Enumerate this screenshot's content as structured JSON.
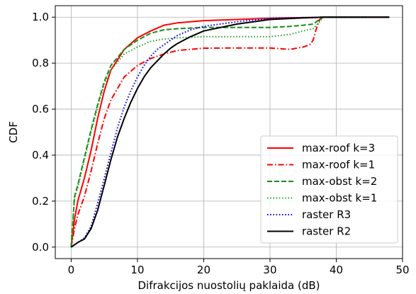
{
  "chart_data": {
    "type": "line",
    "xlabel": "Difrakcijos nuostolių paklaida (dB)",
    "ylabel": "CDF",
    "xlim": [
      -2.4,
      50
    ],
    "ylim": [
      -0.05,
      1.05
    ],
    "xticks": [
      0,
      10,
      20,
      30,
      40,
      50
    ],
    "yticks": [
      0.0,
      0.2,
      0.4,
      0.6,
      0.8,
      1.0
    ],
    "xtick_labels": [
      "0",
      "10",
      "20",
      "30",
      "40",
      "50"
    ],
    "ytick_labels": [
      "0.0",
      "0.2",
      "0.4",
      "0.6",
      "0.8",
      "1.0"
    ],
    "grid": true,
    "legend_position": "lower-right",
    "series": [
      {
        "name": "max-roof k=3",
        "color": "#ff0000",
        "style": "solid",
        "x": [
          0,
          0.5,
          1,
          2,
          3,
          4,
          5,
          6,
          8,
          10,
          12,
          14,
          16,
          20,
          25,
          30,
          35,
          37,
          38,
          40,
          48
        ],
        "y": [
          0,
          0.12,
          0.2,
          0.3,
          0.42,
          0.56,
          0.68,
          0.77,
          0.86,
          0.91,
          0.94,
          0.965,
          0.975,
          0.985,
          0.99,
          0.995,
          0.998,
          0.999,
          1.0,
          1.0,
          1.0
        ]
      },
      {
        "name": "max-roof k=1",
        "color": "#ff0000",
        "style": "dashdot",
        "x": [
          0,
          0.5,
          1,
          2,
          3,
          4,
          5,
          6,
          8,
          10,
          12,
          14,
          16,
          20,
          25,
          30,
          33,
          35,
          36,
          36.5,
          37,
          37.5,
          38,
          40,
          48
        ],
        "y": [
          0,
          0.08,
          0.14,
          0.22,
          0.33,
          0.45,
          0.56,
          0.64,
          0.74,
          0.79,
          0.82,
          0.84,
          0.855,
          0.865,
          0.866,
          0.866,
          0.86,
          0.87,
          0.88,
          0.9,
          0.95,
          0.99,
          1.0,
          1.0,
          1.0
        ]
      },
      {
        "name": "max-obst k=2",
        "color": "#1a8a1a",
        "style": "dashed",
        "x": [
          0,
          0.5,
          1,
          2,
          3,
          4,
          5,
          6,
          8,
          10,
          12,
          14,
          16,
          20,
          25,
          30,
          33,
          35,
          36.5,
          37.5,
          38,
          40,
          48
        ],
        "y": [
          0,
          0.22,
          0.27,
          0.39,
          0.51,
          0.62,
          0.72,
          0.79,
          0.86,
          0.9,
          0.93,
          0.945,
          0.95,
          0.955,
          0.955,
          0.955,
          0.96,
          0.965,
          0.97,
          0.99,
          1.0,
          1.0,
          1.0
        ]
      },
      {
        "name": "max-obst k=1",
        "color": "#2ca02c",
        "style": "dotted",
        "x": [
          0,
          0.5,
          1,
          2,
          3,
          4,
          5,
          6,
          8,
          10,
          12,
          14,
          16,
          20,
          25,
          30,
          33,
          35,
          36.5,
          37.5,
          38,
          40,
          48
        ],
        "y": [
          0,
          0.21,
          0.26,
          0.38,
          0.5,
          0.61,
          0.71,
          0.77,
          0.84,
          0.87,
          0.895,
          0.905,
          0.91,
          0.915,
          0.915,
          0.915,
          0.925,
          0.94,
          0.95,
          0.98,
          1.0,
          1.0,
          1.0
        ]
      },
      {
        "name": "raster R3",
        "color": "#0000ff",
        "style": "dotted",
        "x": [
          0,
          1,
          2,
          3,
          4,
          5,
          6,
          7,
          8,
          9,
          10,
          11,
          12,
          13,
          14,
          15,
          16,
          18,
          20,
          25,
          30,
          35,
          38,
          40,
          48
        ],
        "y": [
          0,
          0.02,
          0.04,
          0.09,
          0.19,
          0.3,
          0.41,
          0.52,
          0.61,
          0.68,
          0.74,
          0.79,
          0.83,
          0.86,
          0.88,
          0.9,
          0.92,
          0.945,
          0.96,
          0.98,
          0.995,
          0.998,
          1.0,
          1.0,
          1.0
        ]
      },
      {
        "name": "raster R2",
        "color": "#000000",
        "style": "solid",
        "x": [
          0,
          1,
          2,
          3,
          4,
          5,
          6,
          7,
          8,
          9,
          10,
          11,
          12,
          13,
          14,
          15,
          16,
          18,
          20,
          25,
          30,
          35,
          38,
          40,
          48
        ],
        "y": [
          0,
          0.02,
          0.035,
          0.08,
          0.16,
          0.27,
          0.38,
          0.48,
          0.56,
          0.63,
          0.69,
          0.74,
          0.78,
          0.81,
          0.84,
          0.865,
          0.885,
          0.915,
          0.94,
          0.97,
          0.99,
          0.997,
          1.0,
          1.0,
          1.0
        ]
      }
    ]
  }
}
